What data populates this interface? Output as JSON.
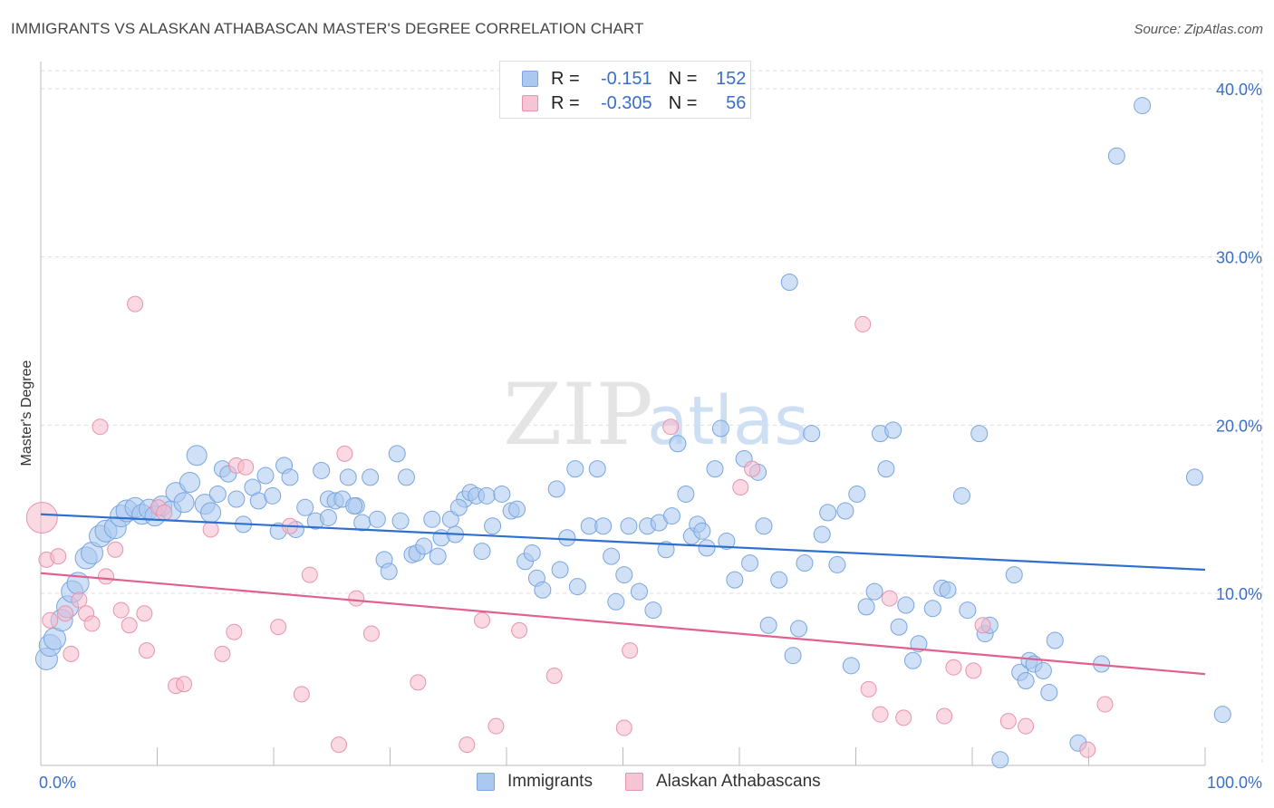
{
  "header": {
    "title": "IMMIGRANTS VS ALASKAN ATHABASCAN MASTER'S DEGREE CORRELATION CHART",
    "source": "Source: ZipAtlas.com"
  },
  "watermark": {
    "zip": "ZIP",
    "atlas": "atlas"
  },
  "legend": {
    "rows": [
      {
        "r_label": "R =",
        "r_value": "-0.151",
        "n_label": "N =",
        "n_value": "152"
      },
      {
        "r_label": "R =",
        "r_value": "-0.305",
        "n_label": "N =",
        "n_value": "56"
      }
    ]
  },
  "bottom_legend": {
    "series1": "Immigrants",
    "series2": "Alaskan Athabascans"
  },
  "colors": {
    "blue_fill": "#aac8f0",
    "blue_stroke": "#7aa5de",
    "blue_line": "#2f6fd0",
    "pink_fill": "#f6b9cc",
    "pink_stroke": "#e893ae",
    "pink_line": "#e0608f",
    "grid": "#dddddd",
    "tick_text": "#3a6fc9"
  },
  "chart_data": {
    "type": "scatter",
    "title": "IMMIGRANTS VS ALASKAN ATHABASCAN MASTER'S DEGREE CORRELATION CHART",
    "xlabel": "",
    "ylabel": "Master's Degree",
    "xlim": [
      0,
      100
    ],
    "ylim": [
      0,
      40
    ],
    "x_tick_labels": [
      "0.0%",
      "100.0%"
    ],
    "y_ticks": [
      10,
      20,
      30,
      40
    ],
    "y_tick_labels": [
      "10.0%",
      "20.0%",
      "30.0%",
      "40.0%"
    ],
    "series": [
      {
        "name": "Immigrants",
        "r": -0.151,
        "n": 152,
        "trend": {
          "x": [
            0,
            100
          ],
          "y": [
            14.7,
            11.4
          ]
        },
        "points": [
          [
            0.5,
            6.1
          ],
          [
            0.8,
            6.9
          ],
          [
            1.2,
            7.3
          ],
          [
            1.8,
            8.4
          ],
          [
            2.3,
            9.2
          ],
          [
            2.7,
            10.1
          ],
          [
            3.2,
            10.6
          ],
          [
            3.9,
            12.1
          ],
          [
            4.4,
            12.4
          ],
          [
            5.1,
            13.4
          ],
          [
            5.6,
            13.7
          ],
          [
            6.4,
            13.9
          ],
          [
            6.9,
            14.6
          ],
          [
            7.4,
            14.9
          ],
          [
            8.1,
            15.1
          ],
          [
            8.7,
            14.7
          ],
          [
            9.3,
            15.0
          ],
          [
            9.8,
            14.6
          ],
          [
            10.4,
            15.2
          ],
          [
            11.2,
            14.9
          ],
          [
            11.6,
            16.0
          ],
          [
            12.3,
            15.4
          ],
          [
            12.8,
            16.6
          ],
          [
            13.4,
            18.2
          ],
          [
            14.1,
            15.3
          ],
          [
            14.6,
            14.8
          ],
          [
            15.2,
            15.9
          ],
          [
            15.6,
            17.4
          ],
          [
            16.1,
            17.1
          ],
          [
            16.8,
            15.6
          ],
          [
            17.4,
            14.1
          ],
          [
            18.2,
            16.3
          ],
          [
            18.7,
            15.5
          ],
          [
            19.3,
            17.0
          ],
          [
            19.9,
            15.8
          ],
          [
            20.4,
            13.7
          ],
          [
            20.9,
            17.6
          ],
          [
            21.4,
            16.9
          ],
          [
            21.9,
            13.8
          ],
          [
            22.7,
            15.1
          ],
          [
            23.6,
            14.3
          ],
          [
            24.1,
            17.3
          ],
          [
            24.7,
            15.6
          ],
          [
            25.3,
            15.5
          ],
          [
            25.9,
            15.6
          ],
          [
            26.4,
            16.9
          ],
          [
            27.1,
            15.2
          ],
          [
            27.6,
            14.2
          ],
          [
            28.3,
            16.9
          ],
          [
            28.9,
            14.4
          ],
          [
            29.5,
            12.0
          ],
          [
            29.9,
            11.3
          ],
          [
            30.6,
            18.3
          ],
          [
            30.9,
            14.3
          ],
          [
            31.4,
            16.9
          ],
          [
            31.9,
            12.3
          ],
          [
            32.3,
            12.4
          ],
          [
            32.9,
            12.8
          ],
          [
            33.6,
            14.4
          ],
          [
            34.1,
            12.2
          ],
          [
            34.4,
            13.3
          ],
          [
            35.2,
            14.4
          ],
          [
            35.6,
            13.5
          ],
          [
            36.4,
            15.6
          ],
          [
            36.9,
            16.0
          ],
          [
            37.4,
            15.8
          ],
          [
            37.9,
            12.5
          ],
          [
            38.3,
            15.8
          ],
          [
            38.8,
            14.0
          ],
          [
            39.6,
            15.9
          ],
          [
            40.4,
            14.9
          ],
          [
            40.9,
            15.0
          ],
          [
            41.6,
            11.9
          ],
          [
            42.2,
            12.4
          ],
          [
            42.6,
            10.9
          ],
          [
            43.1,
            10.2
          ],
          [
            44.3,
            16.2
          ],
          [
            44.6,
            11.4
          ],
          [
            45.2,
            13.3
          ],
          [
            45.9,
            17.4
          ],
          [
            46.1,
            10.4
          ],
          [
            47.1,
            14.0
          ],
          [
            47.8,
            17.4
          ],
          [
            48.3,
            14.0
          ],
          [
            49.0,
            12.2
          ],
          [
            49.4,
            9.5
          ],
          [
            50.1,
            11.1
          ],
          [
            50.5,
            14.0
          ],
          [
            51.4,
            10.1
          ],
          [
            52.1,
            14.0
          ],
          [
            52.6,
            9.0
          ],
          [
            53.1,
            14.2
          ],
          [
            53.7,
            12.6
          ],
          [
            54.2,
            14.6
          ],
          [
            54.7,
            18.9
          ],
          [
            55.4,
            15.9
          ],
          [
            55.9,
            13.4
          ],
          [
            56.4,
            14.1
          ],
          [
            56.8,
            13.7
          ],
          [
            57.2,
            12.7
          ],
          [
            57.9,
            17.4
          ],
          [
            58.4,
            19.8
          ],
          [
            58.9,
            13.1
          ],
          [
            59.6,
            10.8
          ],
          [
            60.4,
            18.0
          ],
          [
            60.9,
            11.8
          ],
          [
            61.6,
            17.2
          ],
          [
            62.1,
            14.0
          ],
          [
            62.5,
            8.1
          ],
          [
            63.4,
            10.8
          ],
          [
            64.3,
            28.5
          ],
          [
            64.6,
            6.3
          ],
          [
            65.1,
            7.9
          ],
          [
            65.6,
            11.8
          ],
          [
            66.2,
            19.5
          ],
          [
            67.1,
            13.5
          ],
          [
            67.6,
            14.8
          ],
          [
            68.4,
            11.7
          ],
          [
            69.1,
            14.9
          ],
          [
            69.6,
            5.7
          ],
          [
            70.1,
            15.9
          ],
          [
            70.9,
            9.2
          ],
          [
            71.6,
            10.1
          ],
          [
            72.1,
            19.5
          ],
          [
            72.6,
            17.4
          ],
          [
            73.2,
            19.7
          ],
          [
            73.7,
            8.0
          ],
          [
            74.3,
            9.3
          ],
          [
            74.9,
            6.0
          ],
          [
            75.4,
            7.0
          ],
          [
            76.6,
            9.1
          ],
          [
            77.4,
            10.3
          ],
          [
            77.9,
            10.2
          ],
          [
            79.1,
            15.8
          ],
          [
            79.6,
            9.0
          ],
          [
            80.6,
            19.5
          ],
          [
            81.1,
            7.6
          ],
          [
            81.5,
            8.1
          ],
          [
            82.4,
            0.1
          ],
          [
            83.6,
            11.1
          ],
          [
            84.1,
            5.3
          ],
          [
            84.6,
            4.8
          ],
          [
            84.9,
            6.0
          ],
          [
            85.3,
            5.8
          ],
          [
            86.1,
            5.4
          ],
          [
            86.6,
            4.1
          ],
          [
            87.1,
            7.2
          ],
          [
            89.1,
            1.1
          ],
          [
            91.1,
            5.8
          ],
          [
            92.4,
            36.0
          ],
          [
            94.6,
            39.0
          ],
          [
            99.1,
            16.9
          ],
          [
            101.5,
            2.8
          ],
          [
            24.7,
            14.5
          ],
          [
            26.9,
            15.2
          ],
          [
            35.9,
            15.1
          ]
        ]
      },
      {
        "name": "Alaskan Athabascans",
        "r": -0.305,
        "n": 56,
        "trend": {
          "x": [
            0,
            100
          ],
          "y": [
            11.2,
            5.2
          ]
        },
        "points": [
          [
            0.1,
            14.5
          ],
          [
            0.5,
            12.0
          ],
          [
            0.8,
            8.4
          ],
          [
            1.5,
            12.2
          ],
          [
            2.1,
            8.8
          ],
          [
            2.6,
            6.4
          ],
          [
            3.3,
            9.6
          ],
          [
            3.9,
            8.8
          ],
          [
            4.4,
            8.2
          ],
          [
            5.1,
            19.9
          ],
          [
            5.6,
            11.0
          ],
          [
            6.4,
            12.6
          ],
          [
            6.9,
            9.0
          ],
          [
            7.6,
            8.1
          ],
          [
            8.1,
            27.2
          ],
          [
            8.9,
            8.8
          ],
          [
            9.1,
            6.6
          ],
          [
            10.1,
            15.1
          ],
          [
            10.6,
            14.8
          ],
          [
            11.6,
            4.5
          ],
          [
            12.3,
            4.6
          ],
          [
            14.6,
            13.8
          ],
          [
            15.6,
            6.4
          ],
          [
            16.6,
            7.7
          ],
          [
            16.8,
            17.6
          ],
          [
            17.6,
            17.5
          ],
          [
            20.4,
            8.0
          ],
          [
            21.4,
            14.0
          ],
          [
            22.4,
            4.0
          ],
          [
            23.1,
            11.1
          ],
          [
            25.6,
            1.0
          ],
          [
            26.1,
            18.3
          ],
          [
            27.1,
            9.7
          ],
          [
            28.4,
            7.6
          ],
          [
            32.4,
            4.7
          ],
          [
            36.6,
            1.0
          ],
          [
            37.9,
            8.4
          ],
          [
            39.1,
            2.1
          ],
          [
            41.1,
            7.8
          ],
          [
            44.1,
            5.1
          ],
          [
            50.1,
            2.0
          ],
          [
            50.6,
            6.6
          ],
          [
            54.1,
            19.9
          ],
          [
            60.1,
            16.3
          ],
          [
            61.1,
            17.4
          ],
          [
            70.6,
            26.0
          ],
          [
            71.1,
            4.3
          ],
          [
            72.1,
            2.8
          ],
          [
            72.9,
            9.7
          ],
          [
            74.1,
            2.6
          ],
          [
            77.6,
            2.7
          ],
          [
            78.4,
            5.6
          ],
          [
            80.1,
            5.4
          ],
          [
            80.9,
            8.1
          ],
          [
            83.1,
            2.4
          ],
          [
            84.6,
            2.1
          ],
          [
            89.9,
            0.7
          ],
          [
            91.4,
            3.4
          ]
        ]
      }
    ]
  }
}
